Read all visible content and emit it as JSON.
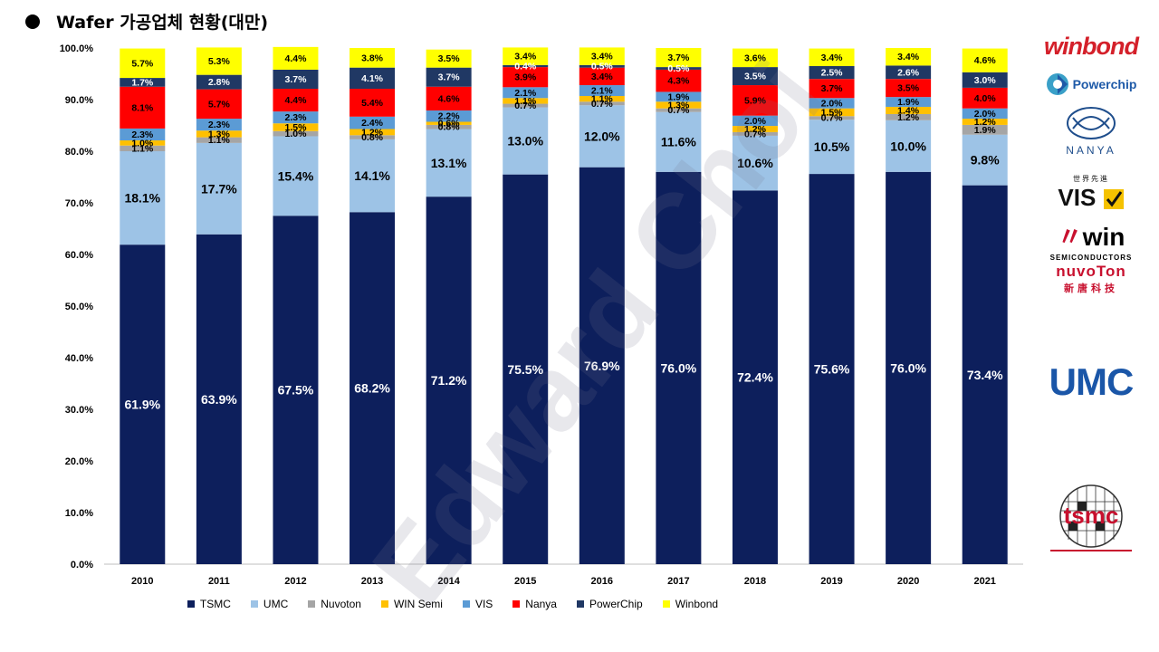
{
  "title": "Wafer 가공업체 현황(대만)",
  "watermark": "Edward Choi",
  "chart_data": {
    "type": "bar",
    "stacked": true,
    "title": "Wafer 가공업체 현황(대만)",
    "xlabel": "",
    "ylabel": "",
    "ylim": [
      0,
      100
    ],
    "y_ticks": [
      "0.0%",
      "10.0%",
      "20.0%",
      "30.0%",
      "40.0%",
      "50.0%",
      "60.0%",
      "70.0%",
      "80.0%",
      "90.0%",
      "100.0%"
    ],
    "grid": false,
    "legend_position": "bottom",
    "categories": [
      "2010",
      "2011",
      "2012",
      "2013",
      "2014",
      "2015",
      "2016",
      "2017",
      "2018",
      "2019",
      "2020",
      "2021"
    ],
    "series": [
      {
        "name": "TSMC",
        "color": "#0d1f5c",
        "label_color": "#ffffff",
        "values": [
          61.9,
          63.9,
          67.5,
          68.2,
          71.2,
          75.5,
          76.9,
          76.0,
          72.4,
          75.6,
          76.0,
          73.4
        ],
        "labels": [
          "61.9%",
          "63.9%",
          "67.5%",
          "68.2%",
          "71.2%",
          "75.5%",
          "76.9%",
          "76.0%",
          "72.4%",
          "75.6%",
          "76.0%",
          "73.4%"
        ]
      },
      {
        "name": "UMC",
        "color": "#9dc3e6",
        "label_color": "#000000",
        "values": [
          18.1,
          17.7,
          15.4,
          14.1,
          13.1,
          13.0,
          12.0,
          11.6,
          10.6,
          10.5,
          10.0,
          9.8
        ],
        "labels": [
          "18.1%",
          "17.7%",
          "15.4%",
          "14.1%",
          "13.1%",
          "13.0%",
          "12.0%",
          "11.6%",
          "10.6%",
          "10.5%",
          "10.0%",
          "9.8%"
        ]
      },
      {
        "name": "Nuvoton",
        "color": "#a5a5a5",
        "label_color": "#000000",
        "values": [
          1.1,
          1.1,
          1.0,
          0.8,
          0.8,
          0.7,
          0.7,
          0.7,
          0.7,
          0.7,
          1.2,
          1.9
        ],
        "labels": [
          "1.1%",
          "1.1%",
          "1.0%",
          "0.8%",
          "0.8%",
          "0.7%",
          "0.7%",
          "0.7%",
          "0.7%",
          "0.7%",
          "1.2%",
          "1.9%"
        ]
      },
      {
        "name": "WIN Semi",
        "color": "#ffc000",
        "label_color": "#000000",
        "values": [
          1.0,
          1.3,
          1.5,
          1.2,
          0.6,
          1.1,
          1.1,
          1.3,
          1.2,
          1.5,
          1.4,
          1.2
        ],
        "labels": [
          "1.0%",
          "1.3%",
          "1.5%",
          "1.2%",
          "0.6%",
          "1.1%",
          "1.1%",
          "1.3%",
          "1.2%",
          "1.5%",
          "1.4%",
          "1.2%"
        ]
      },
      {
        "name": "VIS",
        "color": "#5b9bd5",
        "label_color": "#000000",
        "values": [
          2.3,
          2.3,
          2.3,
          2.4,
          2.2,
          2.1,
          2.1,
          1.9,
          2.0,
          2.0,
          1.9,
          2.0
        ],
        "labels": [
          "2.3%",
          "2.3%",
          "2.3%",
          "2.4%",
          "2.2%",
          "2.1%",
          "2.1%",
          "1.9%",
          "2.0%",
          "2.0%",
          "1.9%",
          "2.0%"
        ]
      },
      {
        "name": "Nanya",
        "color": "#ff0000",
        "label_color": "#000000",
        "values": [
          8.1,
          5.7,
          4.4,
          5.4,
          4.6,
          3.9,
          3.4,
          4.3,
          5.9,
          3.7,
          3.5,
          4.0
        ],
        "labels": [
          "8.1%",
          "5.7%",
          "4.4%",
          "5.4%",
          "4.6%",
          "3.9%",
          "3.4%",
          "4.3%",
          "5.9%",
          "3.7%",
          "3.5%",
          "4.0%"
        ]
      },
      {
        "name": "PowerChip",
        "color": "#203864",
        "label_color": "#ffffff",
        "values": [
          1.7,
          2.8,
          3.7,
          4.1,
          3.7,
          0.4,
          0.5,
          0.5,
          3.5,
          2.5,
          2.6,
          3.0
        ],
        "labels": [
          "1.7%",
          "2.8%",
          "3.7%",
          "4.1%",
          "3.7%",
          "0.4%",
          "0.5%",
          "0.5%",
          "3.5%",
          "2.5%",
          "2.6%",
          "3.0%"
        ]
      },
      {
        "name": "Winbond",
        "color": "#ffff00",
        "label_color": "#000000",
        "values": [
          5.7,
          5.3,
          4.4,
          3.8,
          3.5,
          3.4,
          3.4,
          3.7,
          3.6,
          3.4,
          3.4,
          4.6
        ],
        "labels": [
          "5.7%",
          "5.3%",
          "4.4%",
          "3.8%",
          "3.5%",
          "3.4%",
          "3.4%",
          "3.7%",
          "3.6%",
          "3.4%",
          "3.4%",
          "4.6%"
        ]
      }
    ]
  },
  "logos": {
    "winbond": "winbond",
    "powerchip": "Powerchip",
    "nanya": "NANYA",
    "vis": "VIS",
    "vis_tagline": "世界先進",
    "win": "win",
    "win_tagline": "SEMICONDUCTORS",
    "nuvoton": "nuvoTon",
    "nuvoton_tagline": "新唐科技",
    "umc": "UMC",
    "tsmc": "tsmc"
  }
}
